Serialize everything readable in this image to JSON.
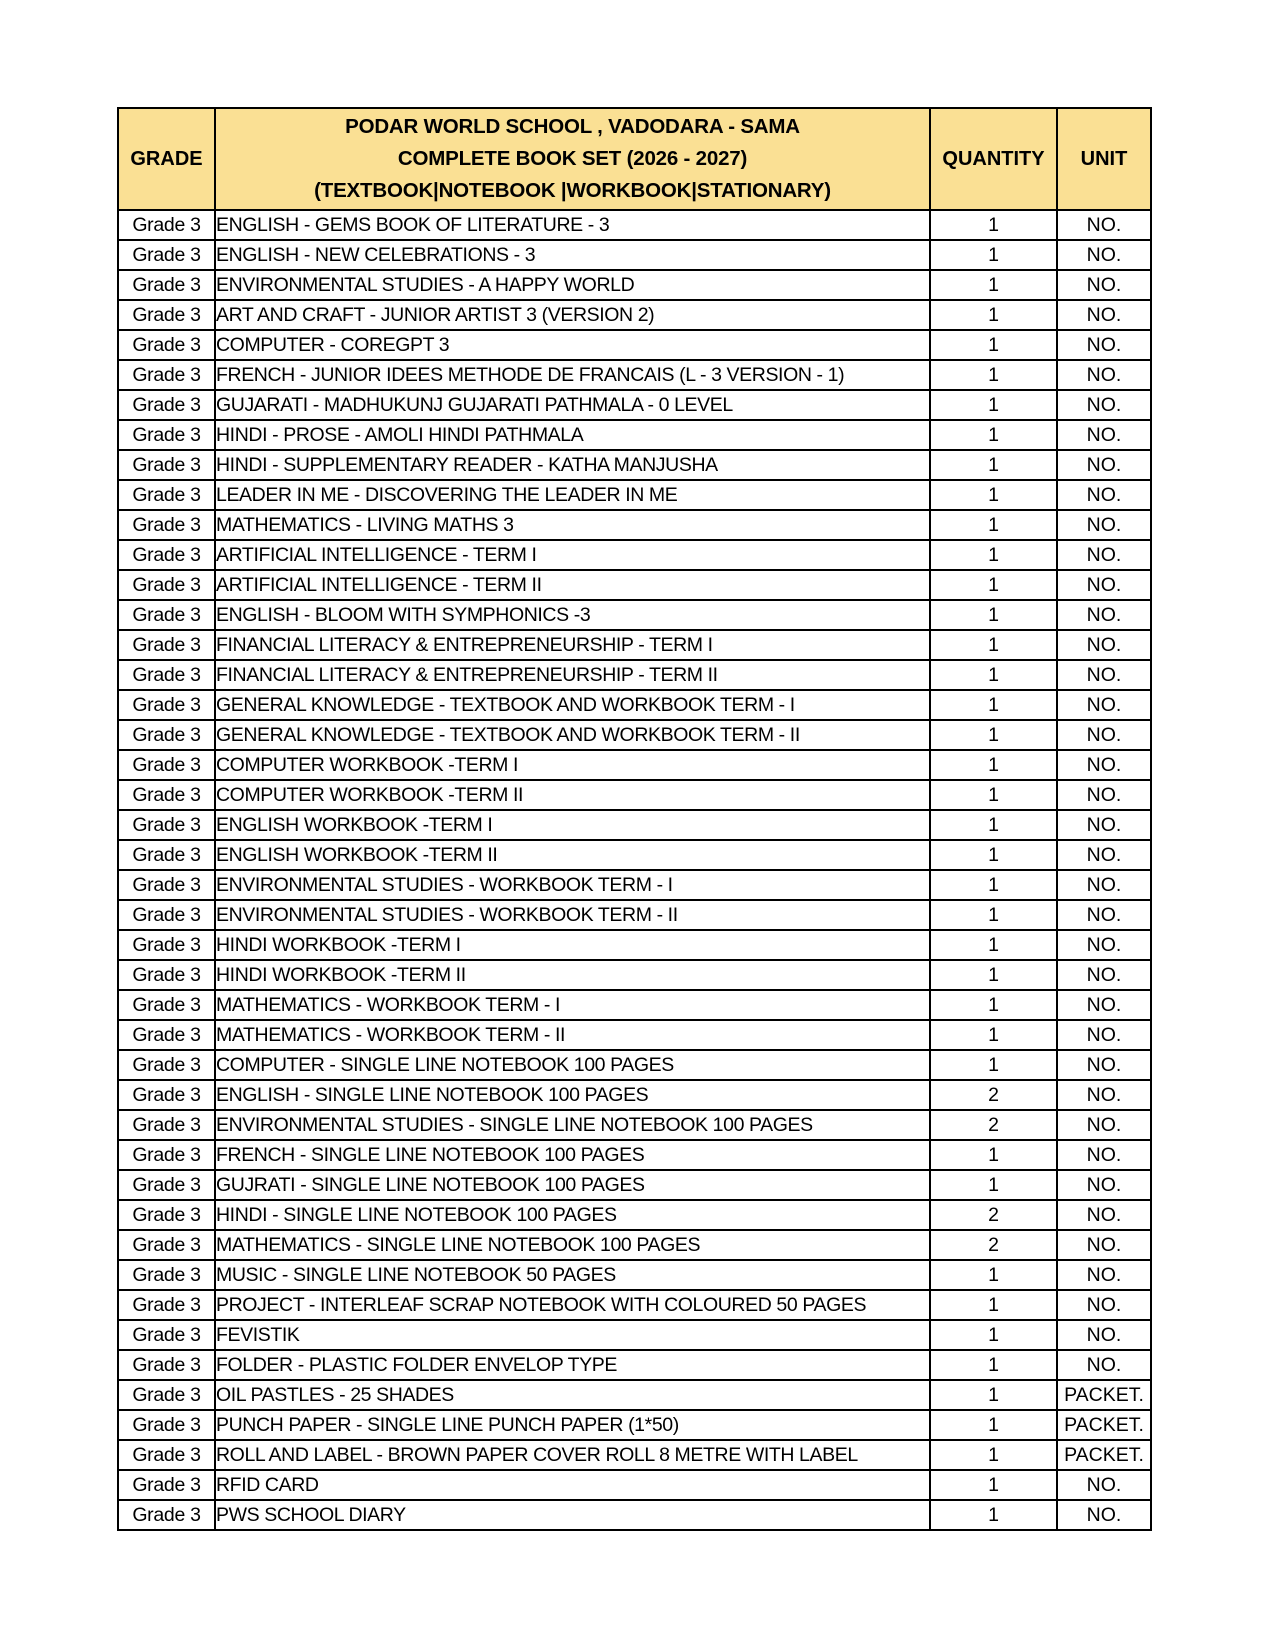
{
  "colors": {
    "header_background": "#FAE094",
    "border": "#000000",
    "text": "#000000",
    "page_background": "#FFFFFF"
  },
  "table": {
    "header": {
      "grade_label": "GRADE",
      "title_lines": [
        "PODAR WORLD SCHOOL , VADODARA - SAMA",
        "COMPLETE BOOK SET (2026 - 2027)",
        "(TEXTBOOK|NOTEBOOK |WORKBOOK|STATIONARY)"
      ],
      "quantity_label": "QUANTITY",
      "unit_label": "UNIT"
    },
    "rows": [
      {
        "grade": "Grade 3",
        "item": "ENGLISH - GEMS BOOK OF LITERATURE - 3",
        "quantity": "1",
        "unit": "NO."
      },
      {
        "grade": "Grade 3",
        "item": "ENGLISH - NEW CELEBRATIONS - 3",
        "quantity": "1",
        "unit": "NO."
      },
      {
        "grade": "Grade 3",
        "item": "ENVIRONMENTAL STUDIES - A HAPPY WORLD",
        "quantity": "1",
        "unit": "NO."
      },
      {
        "grade": "Grade 3",
        "item": "ART AND CRAFT - JUNIOR ARTIST 3 (VERSION 2)",
        "quantity": "1",
        "unit": "NO."
      },
      {
        "grade": "Grade 3",
        "item": "COMPUTER - COREGPT 3",
        "quantity": "1",
        "unit": "NO."
      },
      {
        "grade": "Grade 3",
        "item": "FRENCH - JUNIOR IDEES METHODE DE FRANCAIS (L - 3 VERSION - 1)",
        "quantity": "1",
        "unit": "NO."
      },
      {
        "grade": "Grade 3",
        "item": "GUJARATI - MADHUKUNJ GUJARATI PATHMALA - 0 LEVEL",
        "quantity": "1",
        "unit": "NO."
      },
      {
        "grade": "Grade 3",
        "item": "HINDI - PROSE - AMOLI HINDI PATHMALA",
        "quantity": "1",
        "unit": "NO."
      },
      {
        "grade": "Grade 3",
        "item": "HINDI - SUPPLEMENTARY READER - KATHA MANJUSHA",
        "quantity": "1",
        "unit": "NO."
      },
      {
        "grade": "Grade 3",
        "item": "LEADER IN ME - DISCOVERING THE LEADER IN ME",
        "quantity": "1",
        "unit": "NO."
      },
      {
        "grade": "Grade 3",
        "item": "MATHEMATICS - LIVING MATHS 3",
        "quantity": "1",
        "unit": "NO."
      },
      {
        "grade": "Grade 3",
        "item": "ARTIFICIAL INTELLIGENCE - TERM I",
        "quantity": "1",
        "unit": "NO."
      },
      {
        "grade": "Grade 3",
        "item": "ARTIFICIAL INTELLIGENCE - TERM II",
        "quantity": "1",
        "unit": "NO."
      },
      {
        "grade": "Grade 3",
        "item": "ENGLISH - BLOOM WITH SYMPHONICS -3",
        "quantity": "1",
        "unit": "NO."
      },
      {
        "grade": "Grade 3",
        "item": "FINANCIAL LITERACY & ENTREPRENEURSHIP - TERM I",
        "quantity": "1",
        "unit": "NO."
      },
      {
        "grade": "Grade 3",
        "item": "FINANCIAL LITERACY & ENTREPRENEURSHIP - TERM II",
        "quantity": "1",
        "unit": "NO."
      },
      {
        "grade": "Grade 3",
        "item": "GENERAL KNOWLEDGE - TEXTBOOK AND WORKBOOK TERM - I",
        "quantity": "1",
        "unit": "NO."
      },
      {
        "grade": "Grade 3",
        "item": "GENERAL KNOWLEDGE - TEXTBOOK AND WORKBOOK TERM - II",
        "quantity": "1",
        "unit": "NO."
      },
      {
        "grade": "Grade 3",
        "item": "COMPUTER WORKBOOK -TERM I",
        "quantity": "1",
        "unit": "NO."
      },
      {
        "grade": "Grade 3",
        "item": "COMPUTER WORKBOOK -TERM II",
        "quantity": "1",
        "unit": "NO."
      },
      {
        "grade": "Grade 3",
        "item": "ENGLISH WORKBOOK -TERM I",
        "quantity": "1",
        "unit": "NO."
      },
      {
        "grade": "Grade 3",
        "item": "ENGLISH WORKBOOK -TERM II",
        "quantity": "1",
        "unit": "NO."
      },
      {
        "grade": "Grade 3",
        "item": "ENVIRONMENTAL STUDIES - WORKBOOK TERM - I",
        "quantity": "1",
        "unit": "NO."
      },
      {
        "grade": "Grade 3",
        "item": "ENVIRONMENTAL STUDIES - WORKBOOK TERM - II",
        "quantity": "1",
        "unit": "NO."
      },
      {
        "grade": "Grade 3",
        "item": "HINDI WORKBOOK -TERM I",
        "quantity": "1",
        "unit": "NO."
      },
      {
        "grade": "Grade 3",
        "item": "HINDI WORKBOOK -TERM II",
        "quantity": "1",
        "unit": "NO."
      },
      {
        "grade": "Grade 3",
        "item": "MATHEMATICS - WORKBOOK TERM - I",
        "quantity": "1",
        "unit": "NO."
      },
      {
        "grade": "Grade 3",
        "item": "MATHEMATICS - WORKBOOK TERM - II",
        "quantity": "1",
        "unit": "NO."
      },
      {
        "grade": "Grade 3",
        "item": "COMPUTER - SINGLE LINE NOTEBOOK 100 PAGES",
        "quantity": "1",
        "unit": "NO."
      },
      {
        "grade": "Grade 3",
        "item": "ENGLISH - SINGLE LINE NOTEBOOK 100 PAGES",
        "quantity": "2",
        "unit": "NO."
      },
      {
        "grade": "Grade 3",
        "item": "ENVIRONMENTAL STUDIES - SINGLE LINE NOTEBOOK 100 PAGES",
        "quantity": "2",
        "unit": "NO."
      },
      {
        "grade": "Grade 3",
        "item": "FRENCH - SINGLE LINE NOTEBOOK 100 PAGES",
        "quantity": "1",
        "unit": "NO."
      },
      {
        "grade": "Grade 3",
        "item": "GUJRATI - SINGLE LINE NOTEBOOK 100 PAGES",
        "quantity": "1",
        "unit": "NO."
      },
      {
        "grade": "Grade 3",
        "item": "HINDI - SINGLE LINE NOTEBOOK 100 PAGES",
        "quantity": "2",
        "unit": "NO."
      },
      {
        "grade": "Grade 3",
        "item": "MATHEMATICS - SINGLE LINE NOTEBOOK 100 PAGES",
        "quantity": "2",
        "unit": "NO."
      },
      {
        "grade": "Grade 3",
        "item": "MUSIC - SINGLE LINE NOTEBOOK 50 PAGES",
        "quantity": "1",
        "unit": "NO."
      },
      {
        "grade": "Grade 3",
        "item": "PROJECT - INTERLEAF SCRAP NOTEBOOK WITH COLOURED 50 PAGES",
        "quantity": "1",
        "unit": "NO."
      },
      {
        "grade": "Grade 3",
        "item": "FEVISTIK",
        "quantity": "1",
        "unit": "NO."
      },
      {
        "grade": "Grade 3",
        "item": "FOLDER - PLASTIC FOLDER ENVELOP TYPE",
        "quantity": "1",
        "unit": "NO."
      },
      {
        "grade": "Grade 3",
        "item": "OIL PASTLES - 25 SHADES",
        "quantity": "1",
        "unit": "PACKET."
      },
      {
        "grade": "Grade 3",
        "item": "PUNCH PAPER - SINGLE LINE PUNCH PAPER (1*50)",
        "quantity": "1",
        "unit": "PACKET."
      },
      {
        "grade": "Grade 3",
        "item": "ROLL AND LABEL - BROWN PAPER COVER ROLL 8 METRE WITH LABEL",
        "quantity": "1",
        "unit": "PACKET."
      },
      {
        "grade": "Grade 3",
        "item": "RFID CARD",
        "quantity": "1",
        "unit": "NO."
      },
      {
        "grade": "Grade 3",
        "item": "PWS SCHOOL DIARY",
        "quantity": "1",
        "unit": "NO."
      }
    ]
  }
}
